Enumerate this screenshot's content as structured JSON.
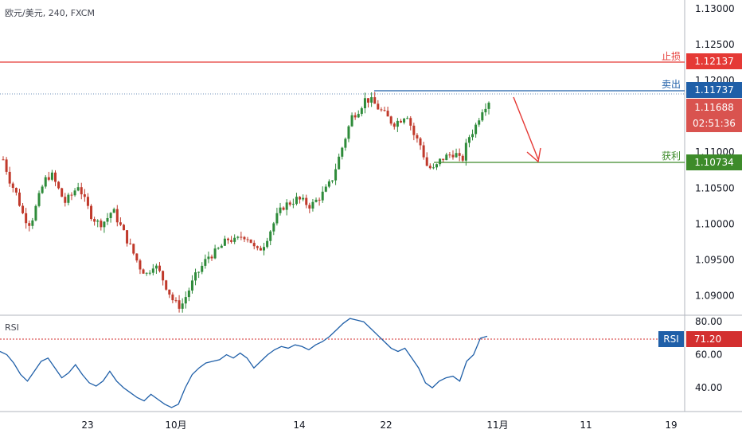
{
  "header": {
    "symbol": "欧元/美元",
    "interval": "240",
    "source": "FXCM"
  },
  "colors": {
    "up": "#26a69a",
    "up_body": "#2e8b3a",
    "down": "#c0392b",
    "stop_loss": "#e53935",
    "sell": "#1f5fa8",
    "take_profit": "#3d8b2a",
    "last_price_bg": "#d9534f",
    "rsi_line": "#1f5fa8",
    "rsi_level": "#d32f2f"
  },
  "price_axis": {
    "ticks": [
      "1.13000",
      "1.12500",
      "1.12000",
      "1.11500",
      "1.11000",
      "1.10500",
      "1.10000",
      "1.09500",
      "1.09000"
    ],
    "range": [
      1.0875,
      1.131
    ]
  },
  "levels": {
    "stop_loss": {
      "label": "止损",
      "value": "1.12137"
    },
    "sell": {
      "label": "卖出",
      "value": "1.11737"
    },
    "last_price": {
      "value": "1.11688",
      "countdown": "02:51:36"
    },
    "take_profit": {
      "label": "获利",
      "value": "1.10734"
    }
  },
  "rsi": {
    "title": "RSI",
    "label": "RSI",
    "value": "71.20",
    "ticks": [
      "80.00",
      "60.00",
      "40.00"
    ],
    "range": [
      27,
      83
    ]
  },
  "time_axis": {
    "ticks": [
      "23",
      "10月",
      "14",
      "22",
      "11月",
      "11",
      "19"
    ]
  },
  "chart_data": {
    "type": "candlestick",
    "title": "欧元/美元, 240, FXCM",
    "y_range": [
      1.0875,
      1.131
    ],
    "close_path": [
      1.109,
      1.106,
      1.104,
      1.101,
      1.1,
      1.103,
      1.106,
      1.107,
      1.105,
      1.103,
      1.104,
      1.1055,
      1.103,
      1.101,
      1.1,
      1.1005,
      1.102,
      1.1,
      1.098,
      1.096,
      1.094,
      1.093,
      1.0945,
      1.093,
      1.091,
      1.089,
      1.0885,
      1.0905,
      1.0925,
      1.094,
      1.0955,
      1.096,
      1.097,
      1.098,
      1.0975,
      1.0985,
      1.098,
      1.096,
      1.097,
      1.099,
      1.101,
      1.1025,
      1.103,
      1.1035,
      1.103,
      1.1025,
      1.1035,
      1.1045,
      1.106,
      1.109,
      1.112,
      1.115,
      1.116,
      1.1175,
      1.117,
      1.116,
      1.115,
      1.114,
      1.1145,
      1.1155,
      1.1125,
      1.111,
      1.108,
      1.1075,
      1.109,
      1.1095,
      1.11,
      1.1085,
      1.112,
      1.1135,
      1.116,
      1.1172
    ],
    "rsi_path": [
      62,
      60,
      55,
      48,
      44,
      50,
      56,
      58,
      52,
      46,
      49,
      54,
      48,
      43,
      41,
      44,
      50,
      44,
      40,
      37,
      34,
      32,
      36,
      33,
      30,
      28,
      30,
      40,
      48,
      52,
      55,
      56,
      57,
      60,
      58,
      61,
      58,
      52,
      56,
      60,
      63,
      65,
      64,
      66,
      65,
      63,
      66,
      68,
      71,
      75,
      79,
      82,
      81,
      80,
      76,
      72,
      68,
      64,
      62,
      64,
      58,
      52,
      43,
      40,
      44,
      46,
      47,
      44,
      56,
      60,
      70,
      71.2
    ],
    "trade_plan": {
      "sell": 1.11737,
      "stop_loss": 1.12137,
      "take_profit": 1.10734
    }
  }
}
